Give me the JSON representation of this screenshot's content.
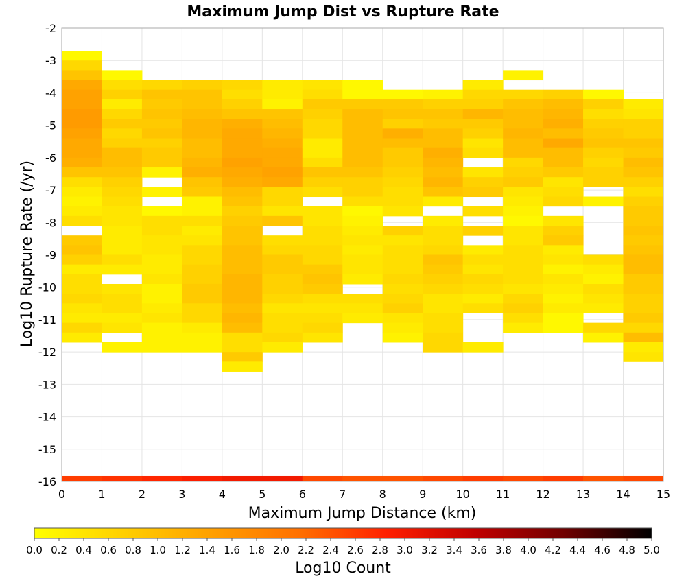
{
  "chart_data": {
    "type": "heatmap",
    "title": "Maximum Jump Dist vs Rupture Rate",
    "xlabel": "Maximum Jump Distance (km)",
    "ylabel": "Log10 Rupture Rate (/yr)",
    "xlim": [
      0,
      15
    ],
    "ylim": [
      -16,
      -2
    ],
    "x_ticks": [
      "0",
      "1",
      "2",
      "3",
      "4",
      "5",
      "6",
      "7",
      "8",
      "9",
      "10",
      "11",
      "12",
      "13",
      "14",
      "15"
    ],
    "y_ticks": [
      "-2",
      "-3",
      "-4",
      "-5",
      "-6",
      "-7",
      "-8",
      "-9",
      "-10",
      "-11",
      "-12",
      "-13",
      "-14",
      "-15",
      "-16"
    ],
    "grid": true,
    "x_bin_width": 1,
    "y_bin_height": 0.3,
    "colorbar": {
      "label": "Log10 Count",
      "range": [
        0,
        5
      ],
      "ticks": [
        "0.0",
        "0.2",
        "0.4",
        "0.6",
        "0.8",
        "1.0",
        "1.2",
        "1.4",
        "1.6",
        "1.8",
        "2.0",
        "2.2",
        "2.4",
        "2.6",
        "2.8",
        "3.0",
        "3.2",
        "3.4",
        "3.6",
        "3.8",
        "4.0",
        "4.2",
        "4.4",
        "4.6",
        "4.8",
        "5.0"
      ],
      "colors": [
        "#ffff00",
        "#ffd000",
        "#ffa000",
        "#ff7000",
        "#ff2000",
        "#c00000",
        "#700000",
        "#000000"
      ]
    },
    "columns": [
      {
        "x": 0,
        "ytop": -2.7,
        "values": [
          0.1,
          0.6,
          0.9,
          1.3,
          1.4,
          1.4,
          1.5,
          1.5,
          1.4,
          1.3,
          1.3,
          1.2,
          0.9,
          0.5,
          0.3,
          0.2,
          0.3,
          0.5,
          null,
          0.8,
          0.9,
          0.7,
          0.3,
          0.5,
          0.5,
          0.6,
          0.4,
          0.3,
          0.6,
          0.3
        ]
      },
      {
        "x": 1,
        "ytop": -3.3,
        "values": [
          0.1,
          0.5,
          0.7,
          0.3,
          0.6,
          0.8,
          0.6,
          0.7,
          1.0,
          1.0,
          0.9,
          0.7,
          0.6,
          0.5,
          0.4,
          0.4,
          0.3,
          0.3,
          0.3,
          0.5,
          0.3,
          null,
          0.4,
          0.5,
          0.5,
          0.3,
          0.4,
          null,
          0.2
        ]
      },
      {
        "x": 2,
        "ytop": -3.6,
        "values": [
          0.6,
          0.9,
          0.8,
          0.9,
          0.8,
          0.9,
          0.7,
          0.8,
          0.8,
          0.2,
          null,
          0.2,
          null,
          0.1,
          0.5,
          0.5,
          0.4,
          0.4,
          0.3,
          0.3,
          0.4,
          0.2,
          0.2,
          0.3,
          0.4,
          0.2,
          0.2,
          0.2
        ]
      },
      {
        "x": 3,
        "ytop": -3.6,
        "values": [
          0.7,
          0.9,
          0.9,
          1.0,
          1.1,
          1.1,
          1.0,
          1.0,
          1.1,
          1.2,
          0.9,
          0.8,
          0.2,
          0.2,
          0.5,
          0.3,
          0.4,
          0.6,
          0.6,
          0.7,
          0.7,
          0.8,
          0.8,
          0.6,
          0.6,
          0.3,
          0.2,
          0.2
        ]
      },
      {
        "x": 4,
        "ytop": -3.6,
        "values": [
          0.6,
          0.5,
          0.7,
          0.9,
          1.2,
          1.3,
          1.3,
          1.3,
          1.4,
          1.3,
          1.2,
          1.0,
          0.9,
          0.7,
          0.8,
          0.9,
          0.9,
          1.0,
          1.0,
          1.0,
          1.1,
          1.1,
          1.1,
          1.0,
          1.1,
          1.0,
          0.5,
          0.5,
          0.8,
          0.3
        ]
      },
      {
        "x": 5,
        "ytop": -3.6,
        "values": [
          0.3,
          0.3,
          0.2,
          0.9,
          1.0,
          1.1,
          1.2,
          1.3,
          1.3,
          1.4,
          1.3,
          0.6,
          0.6,
          0.4,
          0.9,
          null,
          0.5,
          0.6,
          0.8,
          0.8,
          0.7,
          0.7,
          0.6,
          0.4,
          0.5,
          0.5,
          0.6,
          0.3
        ]
      },
      {
        "x": 6,
        "ytop": -3.6,
        "values": [
          0.4,
          0.5,
          0.8,
          0.7,
          0.6,
          0.6,
          0.3,
          0.3,
          0.5,
          0.9,
          0.7,
          0.5,
          null,
          0.4,
          0.4,
          0.5,
          0.5,
          0.6,
          0.6,
          0.8,
          0.9,
          0.8,
          0.5,
          0.4,
          0.5,
          0.6,
          0.4
        ]
      },
      {
        "x": 7,
        "ytop": -3.6,
        "values": [
          0.1,
          0.1,
          0.8,
          1.0,
          1.0,
          1.0,
          1.0,
          1.0,
          1.0,
          0.9,
          0.7,
          0.7,
          0.5,
          0.1,
          0.2,
          0.3,
          0.4,
          0.3,
          0.4,
          0.4,
          0.3,
          null,
          0.5,
          0.4,
          0.3
        ]
      },
      {
        "x": 8,
        "ytop": -3.9,
        "values": [
          0.1,
          0.8,
          0.9,
          0.7,
          1.2,
          1.0,
          0.8,
          0.8,
          0.7,
          0.6,
          0.5,
          0.5,
          0.4,
          null,
          0.7,
          0.4,
          0.5,
          0.5,
          0.5,
          0.6,
          0.5,
          0.6,
          0.7,
          0.4,
          0.3,
          0.2
        ]
      },
      {
        "x": 9,
        "ytop": -3.9,
        "values": [
          0.2,
          0.7,
          0.9,
          0.8,
          1.0,
          1.0,
          1.2,
          1.1,
          1.0,
          1.1,
          0.9,
          0.3,
          null,
          0.3,
          0.5,
          0.5,
          0.6,
          0.9,
          0.8,
          0.7,
          0.6,
          0.4,
          0.4,
          0.5,
          0.5,
          0.6,
          0.6
        ]
      },
      {
        "x": 10,
        "ytop": -3.6,
        "values": [
          0.3,
          0.6,
          0.7,
          1.1,
          0.8,
          0.7,
          0.4,
          0.5,
          null,
          0.4,
          0.7,
          0.8,
          null,
          0.5,
          null,
          0.7,
          null,
          0.3,
          0.5,
          0.4,
          0.6,
          0.5,
          0.3,
          0.5,
          null,
          null,
          null,
          0.3
        ]
      },
      {
        "x": 11,
        "ytop": -3.3,
        "values": [
          0.2,
          null,
          0.6,
          0.9,
          1.0,
          1.0,
          1.1,
          1.0,
          1.0,
          0.6,
          0.7,
          0.8,
          0.4,
          0.3,
          0.2,
          0.1,
          0.4,
          0.4,
          0.5,
          0.5,
          0.5,
          0.5,
          0.4,
          0.6,
          0.7,
          0.5,
          0.3
        ]
      },
      {
        "x": 12,
        "ytop": -3.9,
        "values": [
          0.7,
          1.0,
          1.1,
          1.2,
          1.0,
          1.3,
          1.0,
          1.0,
          0.8,
          0.4,
          0.5,
          0.6,
          null,
          0.4,
          0.7,
          0.8,
          0.3,
          0.4,
          0.2,
          0.4,
          0.3,
          0.2,
          0.3,
          0.1,
          0.1
        ]
      },
      {
        "x": 13,
        "ytop": -3.9,
        "values": [
          0.1,
          0.7,
          0.5,
          0.7,
          0.8,
          0.9,
          0.7,
          0.6,
          0.7,
          0.7,
          null,
          0.2,
          null,
          null,
          null,
          null,
          null,
          0.5,
          0.3,
          0.2,
          0.5,
          0.4,
          0.3,
          null,
          0.6,
          0.2
        ]
      },
      {
        "x": 14,
        "ytop": -4.2,
        "values": [
          0.3,
          0.4,
          0.7,
          0.7,
          0.9,
          0.8,
          1.0,
          0.9,
          0.7,
          0.5,
          0.7,
          0.8,
          0.8,
          0.9,
          0.8,
          0.9,
          1.0,
          1.0,
          0.8,
          0.8,
          0.7,
          0.7,
          0.8,
          0.6,
          1.0,
          0.3,
          0.4
        ]
      }
    ],
    "bottom_row": {
      "y": -16,
      "values": [
        2.6,
        2.7,
        2.8,
        2.9,
        3.0,
        3.0,
        2.5,
        2.4,
        2.4,
        2.5,
        2.6,
        2.5,
        2.6,
        2.4,
        2.5
      ]
    }
  }
}
